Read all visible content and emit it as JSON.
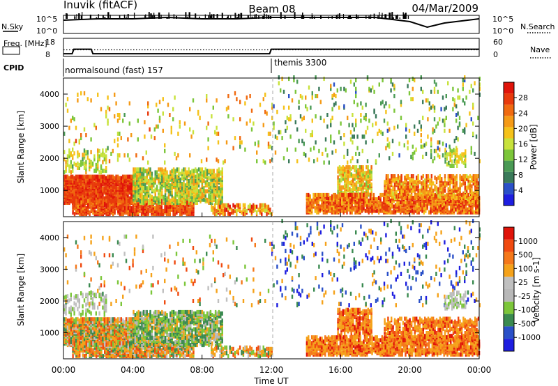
{
  "header": {
    "station": "Inuvik (fitACF)",
    "beam": "Beam 08",
    "date": "04/Mar/2009"
  },
  "colors": {
    "power_scale": [
      "#1e1ee0",
      "#2a50c8",
      "#3a7a5a",
      "#4a9a55",
      "#7cc63a",
      "#c8e23c",
      "#f5c21a",
      "#f59a16",
      "#f06a10",
      "#e83a0c",
      "#e0140a"
    ],
    "velocity_scale": [
      "#e0140a",
      "#f04a10",
      "#f5781a",
      "#f5a21a",
      "#c0c0c0",
      "#b8b8b8",
      "#7cc63a",
      "#3a8a50",
      "#2a50c8",
      "#1e1ee0"
    ],
    "dashed_marker": "#aaaaaa"
  },
  "chart_data": [
    {
      "type": "line",
      "panel": "noise",
      "ylabel_left": "N.Sky",
      "ylabel_right": "N.Search",
      "left_ticks": [
        "10^5",
        "10^0"
      ],
      "right_ticks": [
        "10^5",
        "10^0"
      ],
      "x": [
        0,
        2,
        4,
        6,
        8,
        10,
        12,
        14,
        16,
        18,
        20,
        21,
        22,
        24
      ],
      "series": [
        {
          "name": "N.Sky",
          "style": "solid",
          "values": [
            0.8,
            0.9,
            0.9,
            1.0,
            0.9,
            0.9,
            1.0,
            1.0,
            1.0,
            1.0,
            0.7,
            0.3,
            0.6,
            0.9
          ]
        }
      ]
    },
    {
      "type": "line",
      "panel": "frequency",
      "ylabel_left": "Freq. [MHz]",
      "ylabel_right": "Nave",
      "left_ticks": [
        "18",
        "8"
      ],
      "right_ticks": [
        "60",
        "0"
      ],
      "x": [
        0.0,
        0.5,
        0.6,
        1.6,
        1.7,
        11.9,
        12.0,
        24.0
      ],
      "series": [
        {
          "name": "Freq",
          "style": "solid",
          "values": [
            9.5,
            9.5,
            12.0,
            12.0,
            9.5,
            9.5,
            12.0,
            12.0
          ]
        },
        {
          "name": "Nave",
          "style": "dotted",
          "values": [
            22,
            22,
            22,
            22,
            22,
            22,
            22,
            22
          ]
        }
      ]
    },
    {
      "type": "table",
      "panel": "cpid",
      "label": "CPID",
      "segments": [
        {
          "start": 0.0,
          "end": 12.0,
          "name": "normalsound (fast) 157"
        },
        {
          "start": 12.0,
          "end": 24.0,
          "name": "themis 3300"
        }
      ]
    },
    {
      "type": "heatmap",
      "panel": "power",
      "ylabel": "Slant Range [km]",
      "y_ticks": [
        1000,
        2000,
        3000,
        4000
      ],
      "ylim": [
        180,
        4500
      ],
      "xlim": [
        0,
        24
      ],
      "colorbar_label": "Power [dB]",
      "colorbar_ticks": [
        4,
        8,
        12,
        16,
        20,
        24,
        28
      ],
      "clim": [
        0,
        30
      ]
    },
    {
      "type": "heatmap",
      "panel": "velocity",
      "ylabel": "Slant Range [km]",
      "y_ticks": [
        1000,
        2000,
        3000,
        4000
      ],
      "ylim": [
        180,
        4500
      ],
      "xlim": [
        0,
        24
      ],
      "colorbar_label": "Velocity [m s-1]",
      "colorbar_ticks": [
        1000,
        500,
        100,
        25,
        -25,
        -100,
        -500,
        -1000
      ]
    }
  ],
  "x_axis": {
    "tick_labels": [
      "00:00",
      "04:00",
      "08:00",
      "12:00",
      "16:00",
      "20:00",
      "00:00"
    ],
    "tick_hours": [
      0,
      4,
      8,
      12,
      16,
      20,
      24
    ],
    "label": "Time UT"
  }
}
